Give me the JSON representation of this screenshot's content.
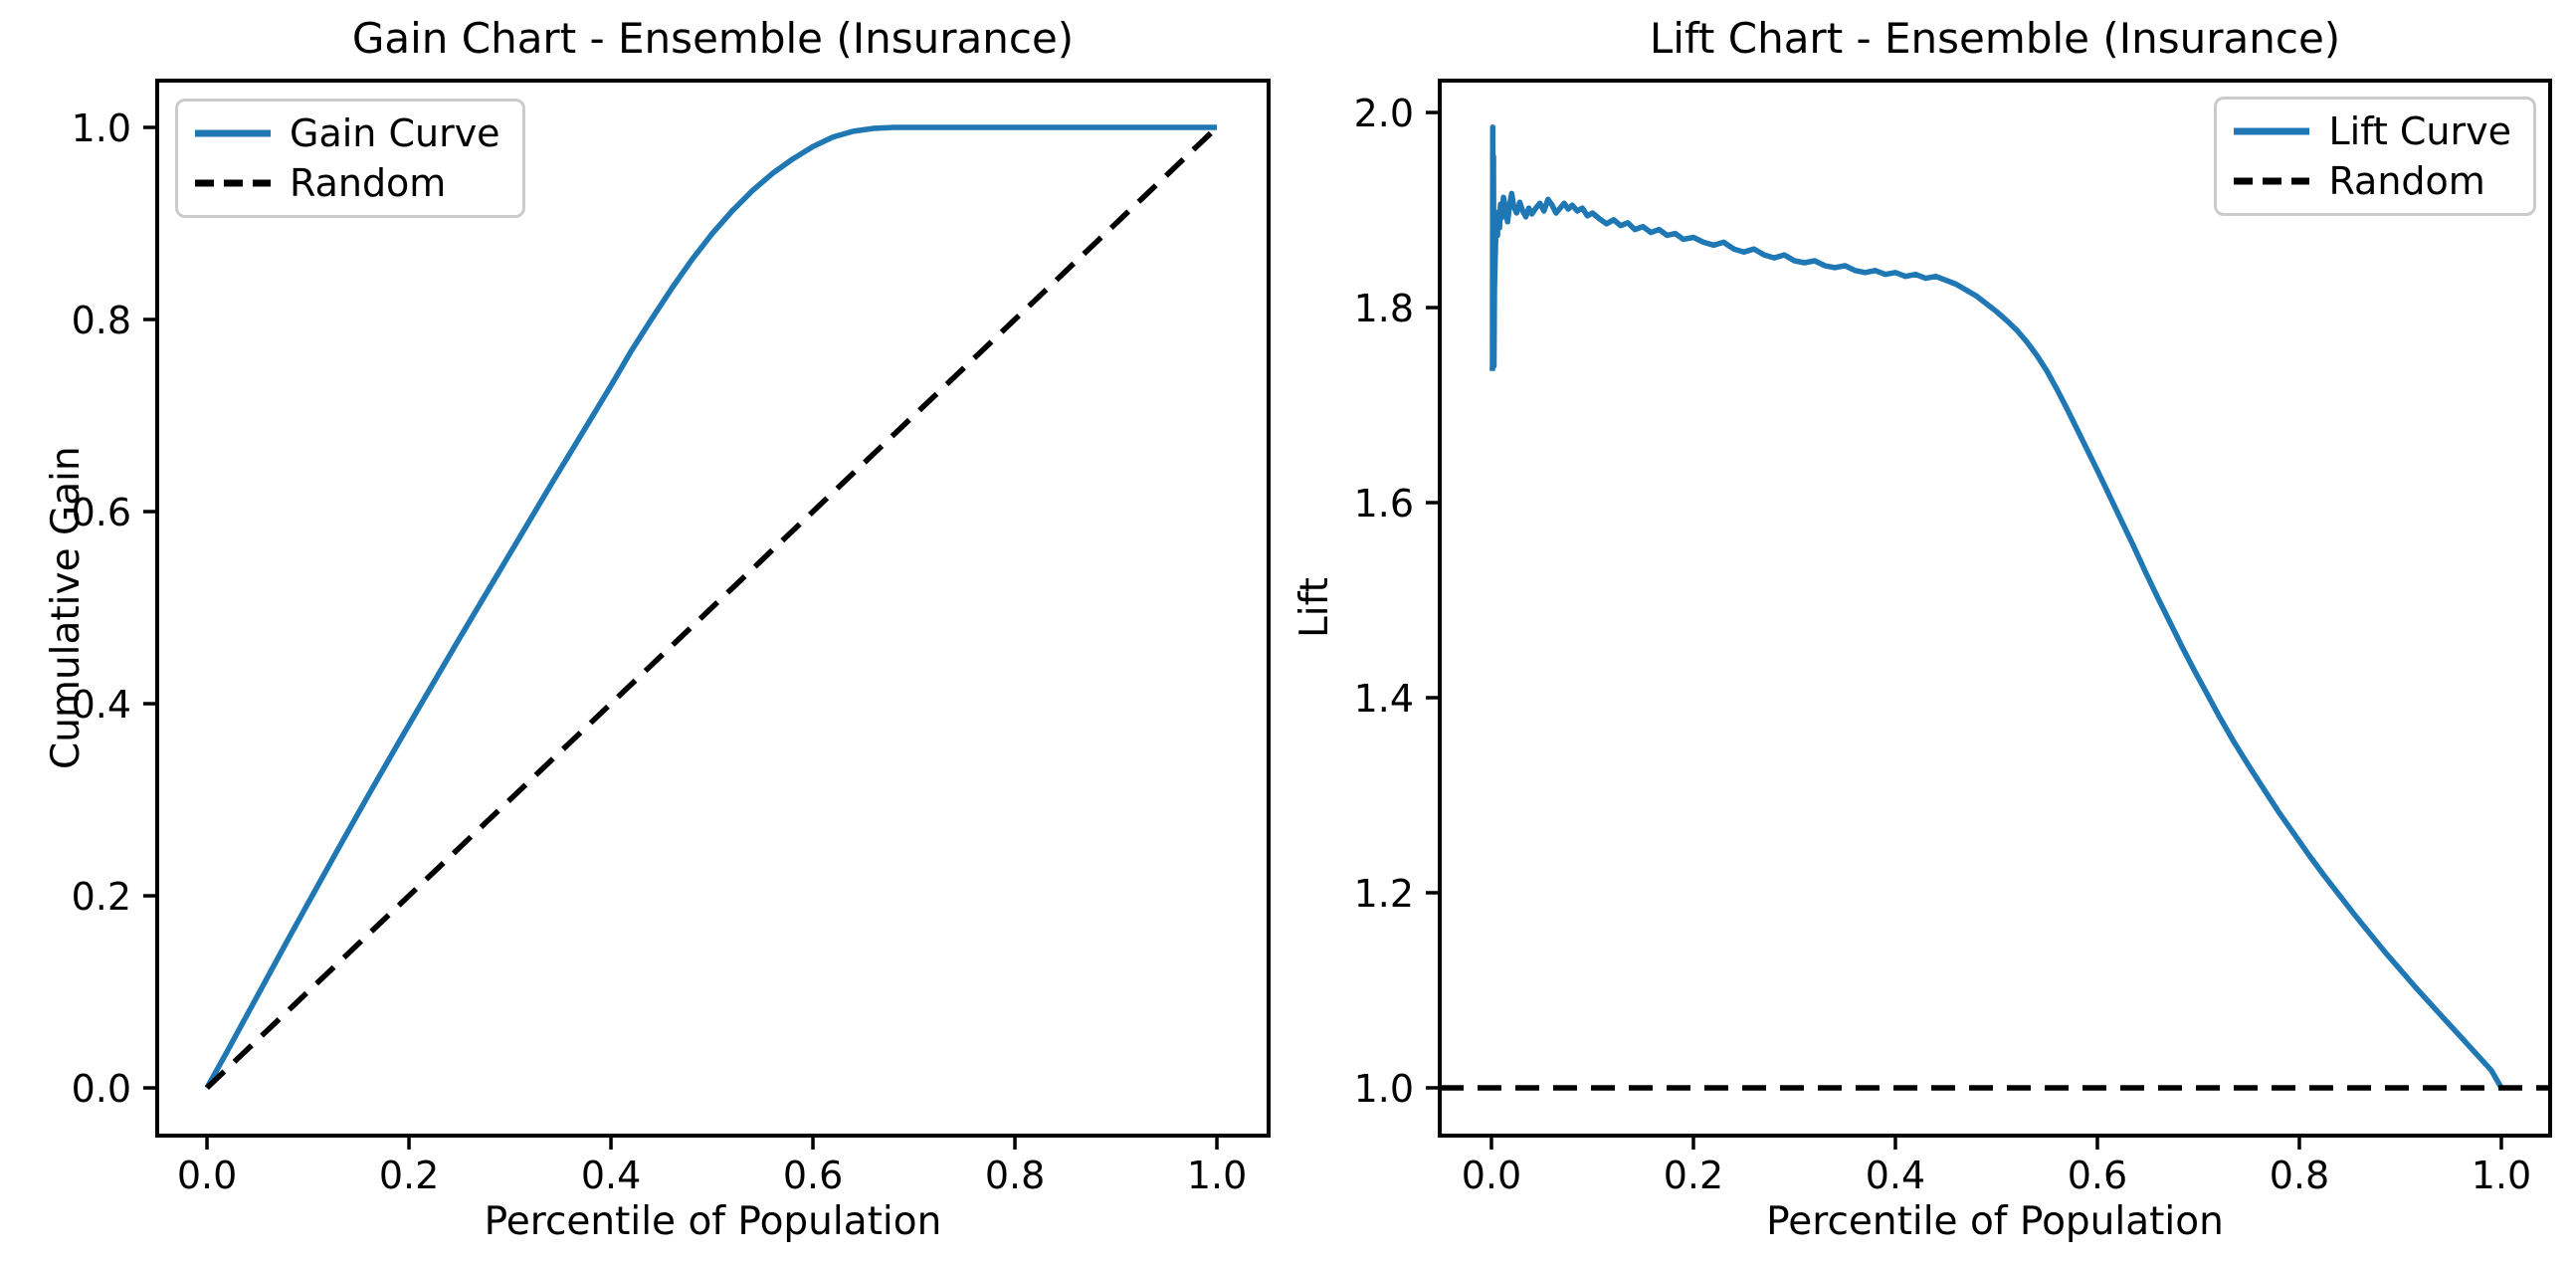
{
  "figure": {
    "background": "#ffffff",
    "accent_blue": "#1f77b4",
    "line_black": "#000000",
    "legend_border": "#cbcbcb"
  },
  "chart_data": [
    {
      "type": "line",
      "title": "Gain Chart - Ensemble (Insurance)",
      "xlabel": "Percentile of Population",
      "ylabel": "Cumulative Gain",
      "xlim": [
        -0.0493,
        1.0512
      ],
      "ylim": [
        -0.0497,
        1.0487
      ],
      "grid": false,
      "legend_position": "upper left",
      "x_ticks": {
        "values": [
          0.0,
          0.2,
          0.4,
          0.6,
          0.8,
          1.0
        ],
        "labels": [
          "0.0",
          "0.2",
          "0.4",
          "0.6",
          "0.8",
          "1.0"
        ]
      },
      "y_ticks": {
        "values": [
          0.0,
          0.2,
          0.4,
          0.6,
          0.8,
          1.0
        ],
        "labels": [
          "0.0",
          "0.2",
          "0.4",
          "0.6",
          "0.8",
          "1.0"
        ]
      },
      "series": [
        {
          "name": "Gain Curve",
          "color": "#1f77b4",
          "style": "solid",
          "points": [
            [
              0.0,
              0.0
            ],
            [
              0.02,
              0.038
            ],
            [
              0.05,
              0.096
            ],
            [
              0.08,
              0.154
            ],
            [
              0.1,
              0.192
            ],
            [
              0.13,
              0.249
            ],
            [
              0.16,
              0.305
            ],
            [
              0.19,
              0.36
            ],
            [
              0.22,
              0.414
            ],
            [
              0.25,
              0.468
            ],
            [
              0.28,
              0.521
            ],
            [
              0.31,
              0.574
            ],
            [
              0.34,
              0.627
            ],
            [
              0.37,
              0.679
            ],
            [
              0.4,
              0.731
            ],
            [
              0.42,
              0.767
            ],
            [
              0.44,
              0.8
            ],
            [
              0.46,
              0.832
            ],
            [
              0.48,
              0.862
            ],
            [
              0.5,
              0.889
            ],
            [
              0.52,
              0.913
            ],
            [
              0.54,
              0.934
            ],
            [
              0.56,
              0.952
            ],
            [
              0.58,
              0.967
            ],
            [
              0.6,
              0.98
            ],
            [
              0.62,
              0.99
            ],
            [
              0.64,
              0.996
            ],
            [
              0.66,
              0.999
            ],
            [
              0.68,
              1.0
            ],
            [
              0.72,
              1.0
            ],
            [
              0.76,
              1.0
            ],
            [
              0.8,
              1.0
            ],
            [
              0.85,
              1.0
            ],
            [
              0.9,
              1.0
            ],
            [
              0.95,
              1.0
            ],
            [
              1.0,
              1.0
            ]
          ]
        },
        {
          "name": "Random",
          "color": "#000000",
          "style": "dashed",
          "points": [
            [
              0.0,
              0.0
            ],
            [
              1.0,
              1.0
            ]
          ]
        }
      ]
    },
    {
      "type": "line",
      "title": "Lift Chart - Ensemble (Insurance)",
      "xlabel": "Percentile of Population",
      "ylabel": "Lift",
      "xlim": [
        -0.0512,
        1.0483
      ],
      "ylim": [
        0.951,
        2.0327
      ],
      "grid": false,
      "legend_position": "upper right",
      "x_ticks": {
        "values": [
          0.0,
          0.2,
          0.4,
          0.6,
          0.8,
          1.0
        ],
        "labels": [
          "0.0",
          "0.2",
          "0.4",
          "0.6",
          "0.8",
          "1.0"
        ]
      },
      "y_ticks": {
        "values": [
          1.0,
          1.2,
          1.4,
          1.6,
          1.8,
          2.0
        ],
        "labels": [
          "1.0",
          "1.2",
          "1.4",
          "1.6",
          "1.8",
          "2.0"
        ]
      },
      "series": [
        {
          "name": "Lift Curve",
          "color": "#1f77b4",
          "style": "solid",
          "points": [
            [
              0.001,
              1.735
            ],
            [
              0.0013,
              1.985
            ],
            [
              0.0016,
              1.8
            ],
            [
              0.002,
              1.955
            ],
            [
              0.0025,
              1.74
            ],
            [
              0.003,
              1.82
            ],
            [
              0.004,
              1.862
            ],
            [
              0.005,
              1.892
            ],
            [
              0.006,
              1.874
            ],
            [
              0.007,
              1.898
            ],
            [
              0.008,
              1.882
            ],
            [
              0.009,
              1.906
            ],
            [
              0.01,
              1.892
            ],
            [
              0.012,
              1.913
            ],
            [
              0.014,
              1.9
            ],
            [
              0.016,
              1.888
            ],
            [
              0.018,
              1.905
            ],
            [
              0.02,
              1.917
            ],
            [
              0.022,
              1.904
            ],
            [
              0.025,
              1.897
            ],
            [
              0.028,
              1.908
            ],
            [
              0.031,
              1.899
            ],
            [
              0.034,
              1.893
            ],
            [
              0.037,
              1.902
            ],
            [
              0.04,
              1.896
            ],
            [
              0.044,
              1.902
            ],
            [
              0.048,
              1.907
            ],
            [
              0.052,
              1.899
            ],
            [
              0.056,
              1.911
            ],
            [
              0.06,
              1.905
            ],
            [
              0.064,
              1.897
            ],
            [
              0.068,
              1.902
            ],
            [
              0.072,
              1.907
            ],
            [
              0.076,
              1.901
            ],
            [
              0.08,
              1.905
            ],
            [
              0.085,
              1.899
            ],
            [
              0.09,
              1.902
            ],
            [
              0.095,
              1.894
            ],
            [
              0.1,
              1.897
            ],
            [
              0.107,
              1.891
            ],
            [
              0.114,
              1.886
            ],
            [
              0.121,
              1.89
            ],
            [
              0.128,
              1.884
            ],
            [
              0.135,
              1.887
            ],
            [
              0.142,
              1.88
            ],
            [
              0.15,
              1.883
            ],
            [
              0.158,
              1.877
            ],
            [
              0.166,
              1.88
            ],
            [
              0.174,
              1.874
            ],
            [
              0.182,
              1.876
            ],
            [
              0.19,
              1.87
            ],
            [
              0.2,
              1.872
            ],
            [
              0.21,
              1.867
            ],
            [
              0.22,
              1.864
            ],
            [
              0.23,
              1.867
            ],
            [
              0.24,
              1.86
            ],
            [
              0.25,
              1.857
            ],
            [
              0.26,
              1.86
            ],
            [
              0.27,
              1.854
            ],
            [
              0.28,
              1.851
            ],
            [
              0.29,
              1.854
            ],
            [
              0.3,
              1.848
            ],
            [
              0.31,
              1.846
            ],
            [
              0.32,
              1.848
            ],
            [
              0.33,
              1.843
            ],
            [
              0.34,
              1.841
            ],
            [
              0.35,
              1.843
            ],
            [
              0.36,
              1.838
            ],
            [
              0.37,
              1.836
            ],
            [
              0.38,
              1.838
            ],
            [
              0.39,
              1.834
            ],
            [
              0.4,
              1.836
            ],
            [
              0.41,
              1.832
            ],
            [
              0.42,
              1.834
            ],
            [
              0.43,
              1.83
            ],
            [
              0.44,
              1.832
            ],
            [
              0.45,
              1.828
            ],
            [
              0.46,
              1.824
            ],
            [
              0.47,
              1.818
            ],
            [
              0.48,
              1.812
            ],
            [
              0.49,
              1.804
            ],
            [
              0.5,
              1.796
            ],
            [
              0.51,
              1.787
            ],
            [
              0.52,
              1.777
            ],
            [
              0.53,
              1.765
            ],
            [
              0.54,
              1.751
            ],
            [
              0.55,
              1.735
            ],
            [
              0.56,
              1.716
            ],
            [
              0.57,
              1.696
            ],
            [
              0.58,
              1.675
            ],
            [
              0.59,
              1.654
            ],
            [
              0.6,
              1.633
            ],
            [
              0.612,
              1.607
            ],
            [
              0.624,
              1.581
            ],
            [
              0.636,
              1.555
            ],
            [
              0.648,
              1.528
            ],
            [
              0.66,
              1.502
            ],
            [
              0.672,
              1.477
            ],
            [
              0.684,
              1.452
            ],
            [
              0.696,
              1.428
            ],
            [
              0.708,
              1.405
            ],
            [
              0.72,
              1.382
            ],
            [
              0.735,
              1.355
            ],
            [
              0.75,
              1.33
            ],
            [
              0.765,
              1.306
            ],
            [
              0.78,
              1.282
            ],
            [
              0.795,
              1.26
            ],
            [
              0.81,
              1.238
            ],
            [
              0.825,
              1.217
            ],
            [
              0.84,
              1.197
            ],
            [
              0.855,
              1.177
            ],
            [
              0.87,
              1.158
            ],
            [
              0.885,
              1.139
            ],
            [
              0.9,
              1.121
            ],
            [
              0.915,
              1.103
            ],
            [
              0.93,
              1.086
            ],
            [
              0.945,
              1.069
            ],
            [
              0.96,
              1.052
            ],
            [
              0.975,
              1.035
            ],
            [
              0.99,
              1.018
            ],
            [
              1.0,
              1.0
            ]
          ]
        },
        {
          "name": "Random",
          "color": "#000000",
          "style": "dashed",
          "full_width": true,
          "points": [
            [
              0.0,
              1.0
            ],
            [
              1.0,
              1.0
            ]
          ]
        }
      ]
    }
  ]
}
